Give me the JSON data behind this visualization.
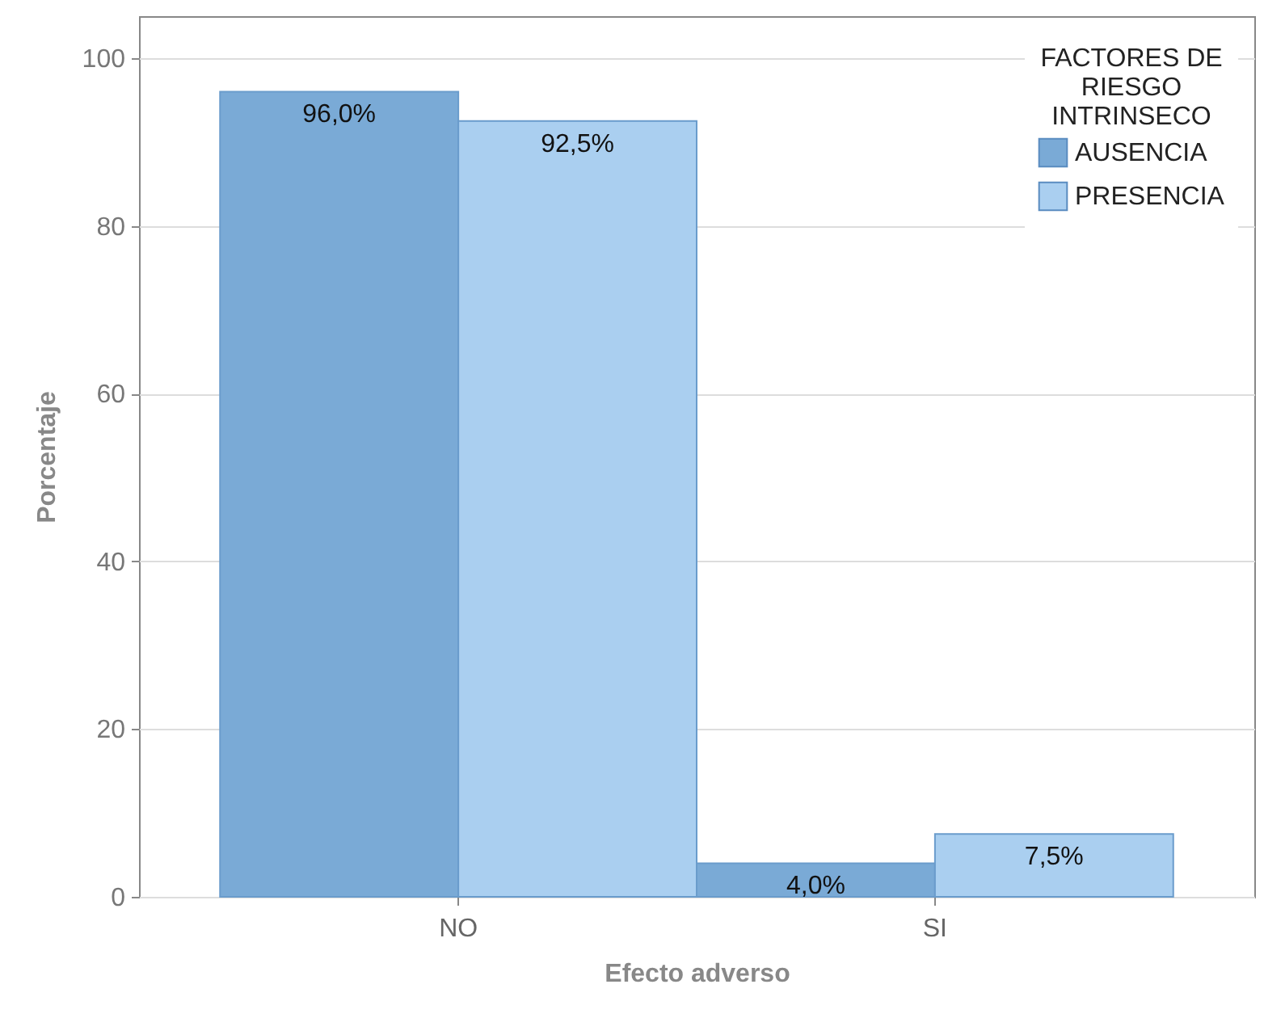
{
  "chart_data": {
    "type": "bar",
    "xlabel": "Efecto adverso",
    "ylabel": "Porcentaje",
    "legend_title": "FACTORES DE RIESGO INTRINSECO",
    "categories": [
      "NO",
      "SI"
    ],
    "series": [
      {
        "name": "AUSENCIA",
        "color": "#7aaad6",
        "values": [
          96.0,
          4.0
        ],
        "value_labels": [
          "96,0%",
          "4,0%"
        ]
      },
      {
        "name": "PRESENCIA",
        "color": "#aacff0",
        "values": [
          92.5,
          7.5
        ],
        "value_labels": [
          "92,5%",
          "7,5%"
        ]
      }
    ],
    "ylim": [
      0,
      105
    ],
    "yticks": [
      0,
      20,
      40,
      60,
      80,
      100
    ],
    "grid": "y",
    "legend": "top right"
  }
}
